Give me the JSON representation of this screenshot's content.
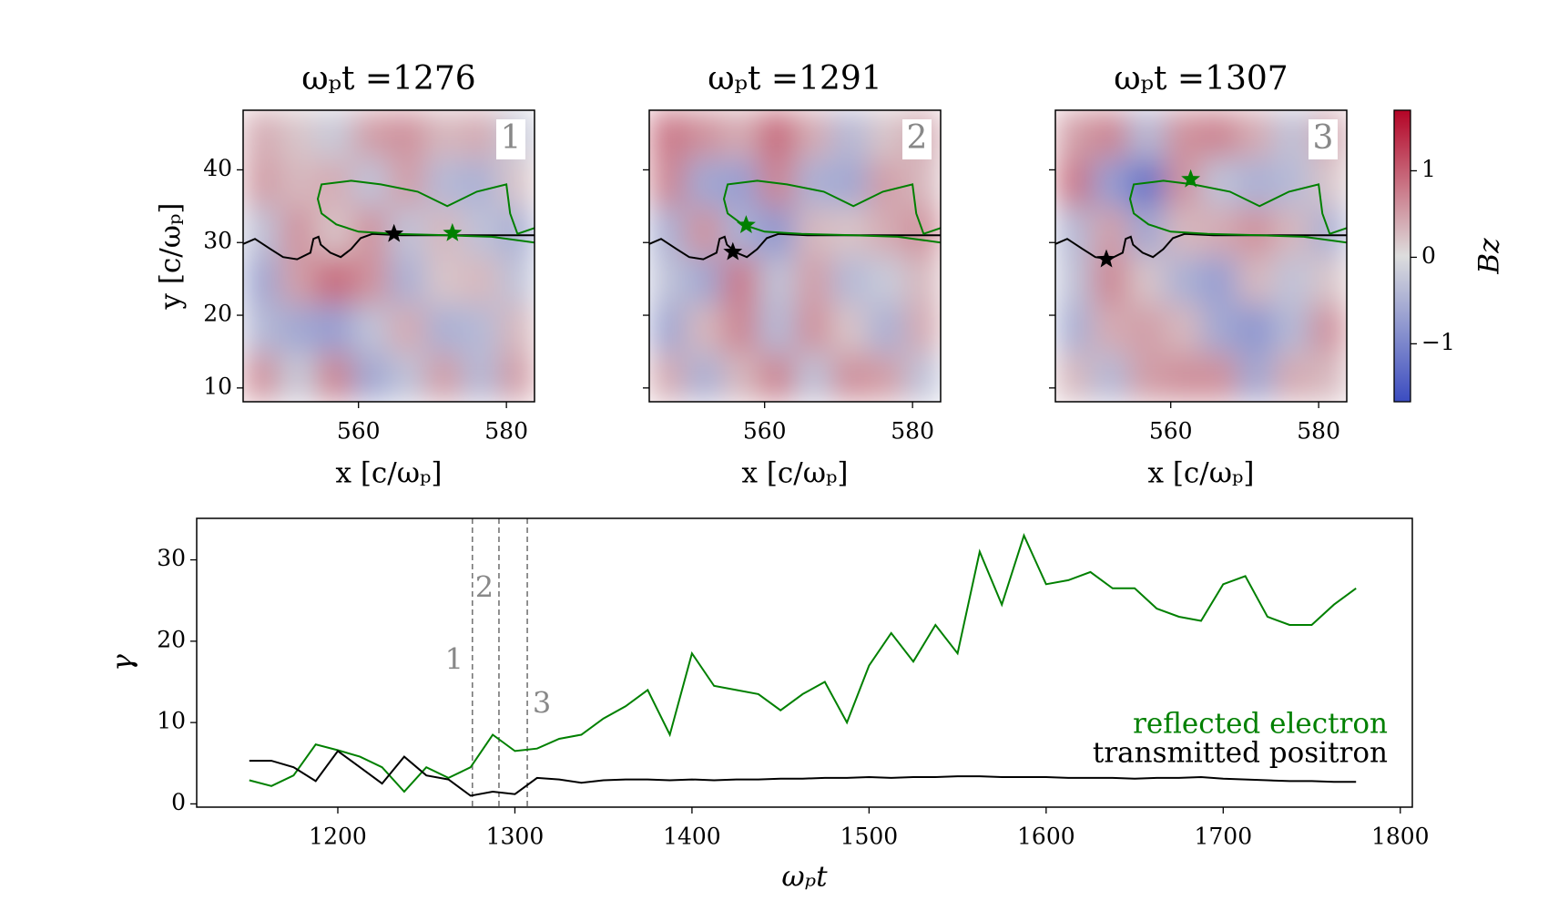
{
  "chart_data": [
    {
      "type": "heatmap",
      "title": "ωₚt =1276",
      "label": "1",
      "xlabel": "x [c/ωₚ]",
      "ylabel": "y [c/ωₚ]",
      "xlim": [
        544.4,
        583.8
      ],
      "ylim": [
        8.1,
        48.2
      ],
      "xticks": [
        560,
        580
      ],
      "yticks": [
        10,
        20,
        30,
        40
      ],
      "show_ytick_labels": true,
      "z": [
        [
          0.4,
          0.2,
          -0.2,
          0.5,
          0.6,
          0.3,
          0.4,
          -0.2
        ],
        [
          0.5,
          0.3,
          0.4,
          -0.3,
          0.5,
          -0.4,
          -0.5,
          0.2
        ],
        [
          -0.3,
          0.6,
          0.2,
          0.6,
          -0.3,
          0.3,
          -0.3,
          -0.5
        ],
        [
          -0.6,
          0.5,
          0.9,
          0.6,
          -0.5,
          0.2,
          0.3,
          -0.3
        ],
        [
          -0.4,
          -0.6,
          -0.7,
          -0.3,
          0.4,
          -0.5,
          -0.4,
          0.3
        ],
        [
          0.6,
          -0.2,
          0.7,
          -0.6,
          -0.3,
          0.5,
          -0.4,
          0.5
        ]
      ],
      "lines": [
        {
          "color": "#000000",
          "x": [
            544.4,
            546,
            548.1,
            549.8,
            551.7,
            553.5,
            553.9,
            554.6,
            554.9,
            556.2,
            557.6,
            559,
            560.3,
            561.9,
            565.8,
            572.6,
            583.8
          ],
          "y": [
            29.8,
            30.5,
            29.1,
            28,
            27.7,
            28.6,
            30.5,
            30.8,
            29.7,
            28.6,
            28,
            29.1,
            30.6,
            31.2,
            31,
            31,
            31
          ]
        },
        {
          "color": "#008000",
          "x": [
            583.8,
            581.5,
            580.5,
            580,
            576,
            572,
            568,
            563,
            559,
            555,
            554.5,
            555,
            557,
            560,
            565,
            572,
            578,
            583.8
          ],
          "y": [
            32,
            31.2,
            34,
            38,
            37,
            35,
            37,
            38,
            38.5,
            38,
            36,
            34,
            32.5,
            31.5,
            31.2,
            31,
            30.8,
            30
          ]
        }
      ],
      "stars": [
        {
          "color": "#000000",
          "x": 564.8,
          "y": 31.2
        },
        {
          "color": "#008000",
          "x": 572.7,
          "y": 31.3
        }
      ]
    },
    {
      "type": "heatmap",
      "title": "ωₚt =1291",
      "label": "2",
      "xlabel": "x [c/ωₚ]",
      "xlim": [
        544.4,
        583.8
      ],
      "ylim": [
        8.1,
        48.2
      ],
      "xticks": [
        560,
        580
      ],
      "yticks": [
        10,
        20,
        30,
        40
      ],
      "show_ytick_labels": false,
      "z": [
        [
          0.8,
          0.6,
          0.4,
          0.9,
          0.4,
          -0.4,
          0.2,
          0.4
        ],
        [
          0.7,
          -0.6,
          -0.7,
          0.7,
          -0.5,
          -0.6,
          0.5,
          0.3
        ],
        [
          -0.5,
          0.6,
          -0.5,
          -0.8,
          0.3,
          0.2,
          0.4,
          0.6
        ],
        [
          -0.3,
          -0.6,
          0.8,
          -0.3,
          0.5,
          -0.4,
          -0.2,
          0.3
        ],
        [
          -0.6,
          0.3,
          0.7,
          -0.4,
          0.6,
          0.2,
          -0.5,
          0.4
        ],
        [
          0.4,
          -0.5,
          0.3,
          0.7,
          -0.3,
          0.6,
          0.5,
          -0.3
        ]
      ],
      "lines": [
        {
          "color": "#000000",
          "x": [
            544.4,
            546,
            548.1,
            549.8,
            551.7,
            553.5,
            553.9,
            554.6,
            554.9,
            556.2,
            557.6,
            559,
            560.3,
            561.9,
            565.8,
            572.6,
            583.8
          ],
          "y": [
            29.8,
            30.5,
            29.1,
            28,
            27.7,
            28.6,
            30.5,
            30.8,
            29.7,
            28.6,
            28,
            29.1,
            30.6,
            31.2,
            31,
            31,
            31
          ]
        },
        {
          "color": "#008000",
          "x": [
            583.8,
            581.5,
            580.5,
            580,
            576,
            572,
            568,
            563,
            559,
            555,
            554.5,
            555,
            557,
            560,
            565,
            572,
            578,
            583.8
          ],
          "y": [
            32,
            31.2,
            34,
            38,
            37,
            35,
            37,
            38,
            38.5,
            38,
            36,
            34,
            32.5,
            31.5,
            31.2,
            31,
            30.8,
            30
          ]
        }
      ],
      "stars": [
        {
          "color": "#000000",
          "x": 555.7,
          "y": 28.7
        },
        {
          "color": "#008000",
          "x": 557.5,
          "y": 32.4
        }
      ]
    },
    {
      "type": "heatmap",
      "title": "ωₚt =1307",
      "label": "3",
      "xlabel": "x [c/ωₚ]",
      "xlim": [
        544.4,
        583.8
      ],
      "ylim": [
        8.1,
        48.2
      ],
      "xticks": [
        560,
        580
      ],
      "yticks": [
        10,
        20,
        30,
        40
      ],
      "show_ytick_labels": false,
      "z": [
        [
          0.5,
          0.7,
          -0.4,
          0.6,
          0.7,
          0.4,
          -0.3,
          0.4
        ],
        [
          0.8,
          -0.7,
          -1.2,
          0.6,
          -0.3,
          -0.5,
          -0.4,
          0.2
        ],
        [
          -0.4,
          0.5,
          -0.6,
          0.3,
          0.4,
          0.6,
          0.3,
          -0.5
        ],
        [
          -0.3,
          0.7,
          0.2,
          -0.5,
          -0.7,
          0.3,
          -0.3,
          0.2
        ],
        [
          -0.5,
          0.4,
          0.5,
          0.3,
          -0.6,
          -0.8,
          -0.4,
          0.6
        ],
        [
          0.3,
          -0.4,
          0.5,
          0.6,
          0.6,
          -0.6,
          0.4,
          0.3
        ]
      ],
      "lines": [
        {
          "color": "#000000",
          "x": [
            544.4,
            546,
            548.1,
            549.8,
            551.7,
            553.5,
            553.9,
            554.6,
            554.9,
            556.2,
            557.6,
            559,
            560.3,
            561.9,
            565.8,
            572.6,
            583.8
          ],
          "y": [
            29.8,
            30.5,
            29.1,
            28,
            27.7,
            28.6,
            30.5,
            30.8,
            29.7,
            28.6,
            28,
            29.1,
            30.6,
            31.2,
            31,
            31,
            31
          ]
        },
        {
          "color": "#008000",
          "x": [
            583.8,
            581.5,
            580.5,
            580,
            576,
            572,
            568,
            563,
            559,
            555,
            554.5,
            555,
            557,
            560,
            565,
            572,
            578,
            583.8
          ],
          "y": [
            32,
            31.2,
            34,
            38,
            37,
            35,
            37,
            38,
            38.5,
            38,
            36,
            34,
            32.5,
            31.5,
            31.2,
            31,
            30.8,
            30
          ]
        }
      ],
      "stars": [
        {
          "color": "#000000",
          "x": 551.3,
          "y": 27.7
        },
        {
          "color": "#008000",
          "x": 562.7,
          "y": 38.7
        }
      ]
    },
    {
      "type": "colorbar",
      "label": "Bz",
      "clim": [
        -1.67,
        1.7
      ],
      "colors": [
        "#3b4cc0",
        "#dddddd",
        "#b40426"
      ],
      "ticks": [
        {
          "value": -1,
          "label": "−1"
        },
        0,
        1
      ]
    },
    {
      "type": "line",
      "xlabel": "ωₚt",
      "ylabel": "γ",
      "xlim": [
        1120.3,
        1806.8
      ],
      "ylim": [
        -0.4,
        35.1
      ],
      "xticks": [
        1200,
        1300,
        1400,
        1500,
        1600,
        1700,
        1800
      ],
      "yticks": [
        0,
        10,
        20,
        30
      ],
      "legend": "lower right",
      "x": [
        1150,
        1162.5,
        1175,
        1187.5,
        1200,
        1212.5,
        1225,
        1237.5,
        1250,
        1262.5,
        1275,
        1287.5,
        1300,
        1312.5,
        1325,
        1337.5,
        1350,
        1362.5,
        1375,
        1387.5,
        1400,
        1412.5,
        1425,
        1437.5,
        1450,
        1462.5,
        1475,
        1487.5,
        1500,
        1512.5,
        1525,
        1537.5,
        1550,
        1562.5,
        1575,
        1587.5,
        1600,
        1612.5,
        1625,
        1637.5,
        1650,
        1662.5,
        1675,
        1687.5,
        1700,
        1712.5,
        1725,
        1737.5,
        1750,
        1762.5,
        1775
      ],
      "series": [
        {
          "name": "reflected electron",
          "color": "#008000",
          "values": [
            2.9,
            2.2,
            3.5,
            7.3,
            6.6,
            5.8,
            4.5,
            1.5,
            4.5,
            3.2,
            4.5,
            8.5,
            6.5,
            6.8,
            8.0,
            8.5,
            10.5,
            12.0,
            14.0,
            8.5,
            18.5,
            14.5,
            14.0,
            13.5,
            11.5,
            13.5,
            15.0,
            10.0,
            17.0,
            21.0,
            17.5,
            22.0,
            18.5,
            31.0,
            24.5,
            33.0,
            27.0,
            27.5,
            28.5,
            26.5,
            26.5,
            24.0,
            23.0,
            22.5,
            27.0,
            28.0,
            23.0,
            22.0,
            22.0,
            24.5,
            26.5
          ]
        },
        {
          "name": "transmitted positron",
          "color": "#000000",
          "values": [
            5.3,
            5.3,
            4.5,
            2.8,
            6.5,
            4.5,
            2.5,
            5.8,
            3.5,
            3.0,
            1.0,
            1.5,
            1.2,
            3.2,
            3.0,
            2.6,
            2.9,
            3.0,
            3.0,
            2.9,
            3.0,
            2.9,
            3.0,
            3.0,
            3.1,
            3.1,
            3.2,
            3.2,
            3.3,
            3.2,
            3.3,
            3.3,
            3.4,
            3.4,
            3.3,
            3.3,
            3.3,
            3.2,
            3.2,
            3.2,
            3.1,
            3.2,
            3.2,
            3.3,
            3.1,
            3.0,
            2.9,
            2.8,
            2.8,
            2.7,
            2.7
          ]
        }
      ],
      "vlines": [
        {
          "value": 1276,
          "label": "1"
        },
        {
          "value": 1291,
          "label": "2"
        },
        {
          "value": 1307,
          "label": "3"
        }
      ]
    }
  ]
}
